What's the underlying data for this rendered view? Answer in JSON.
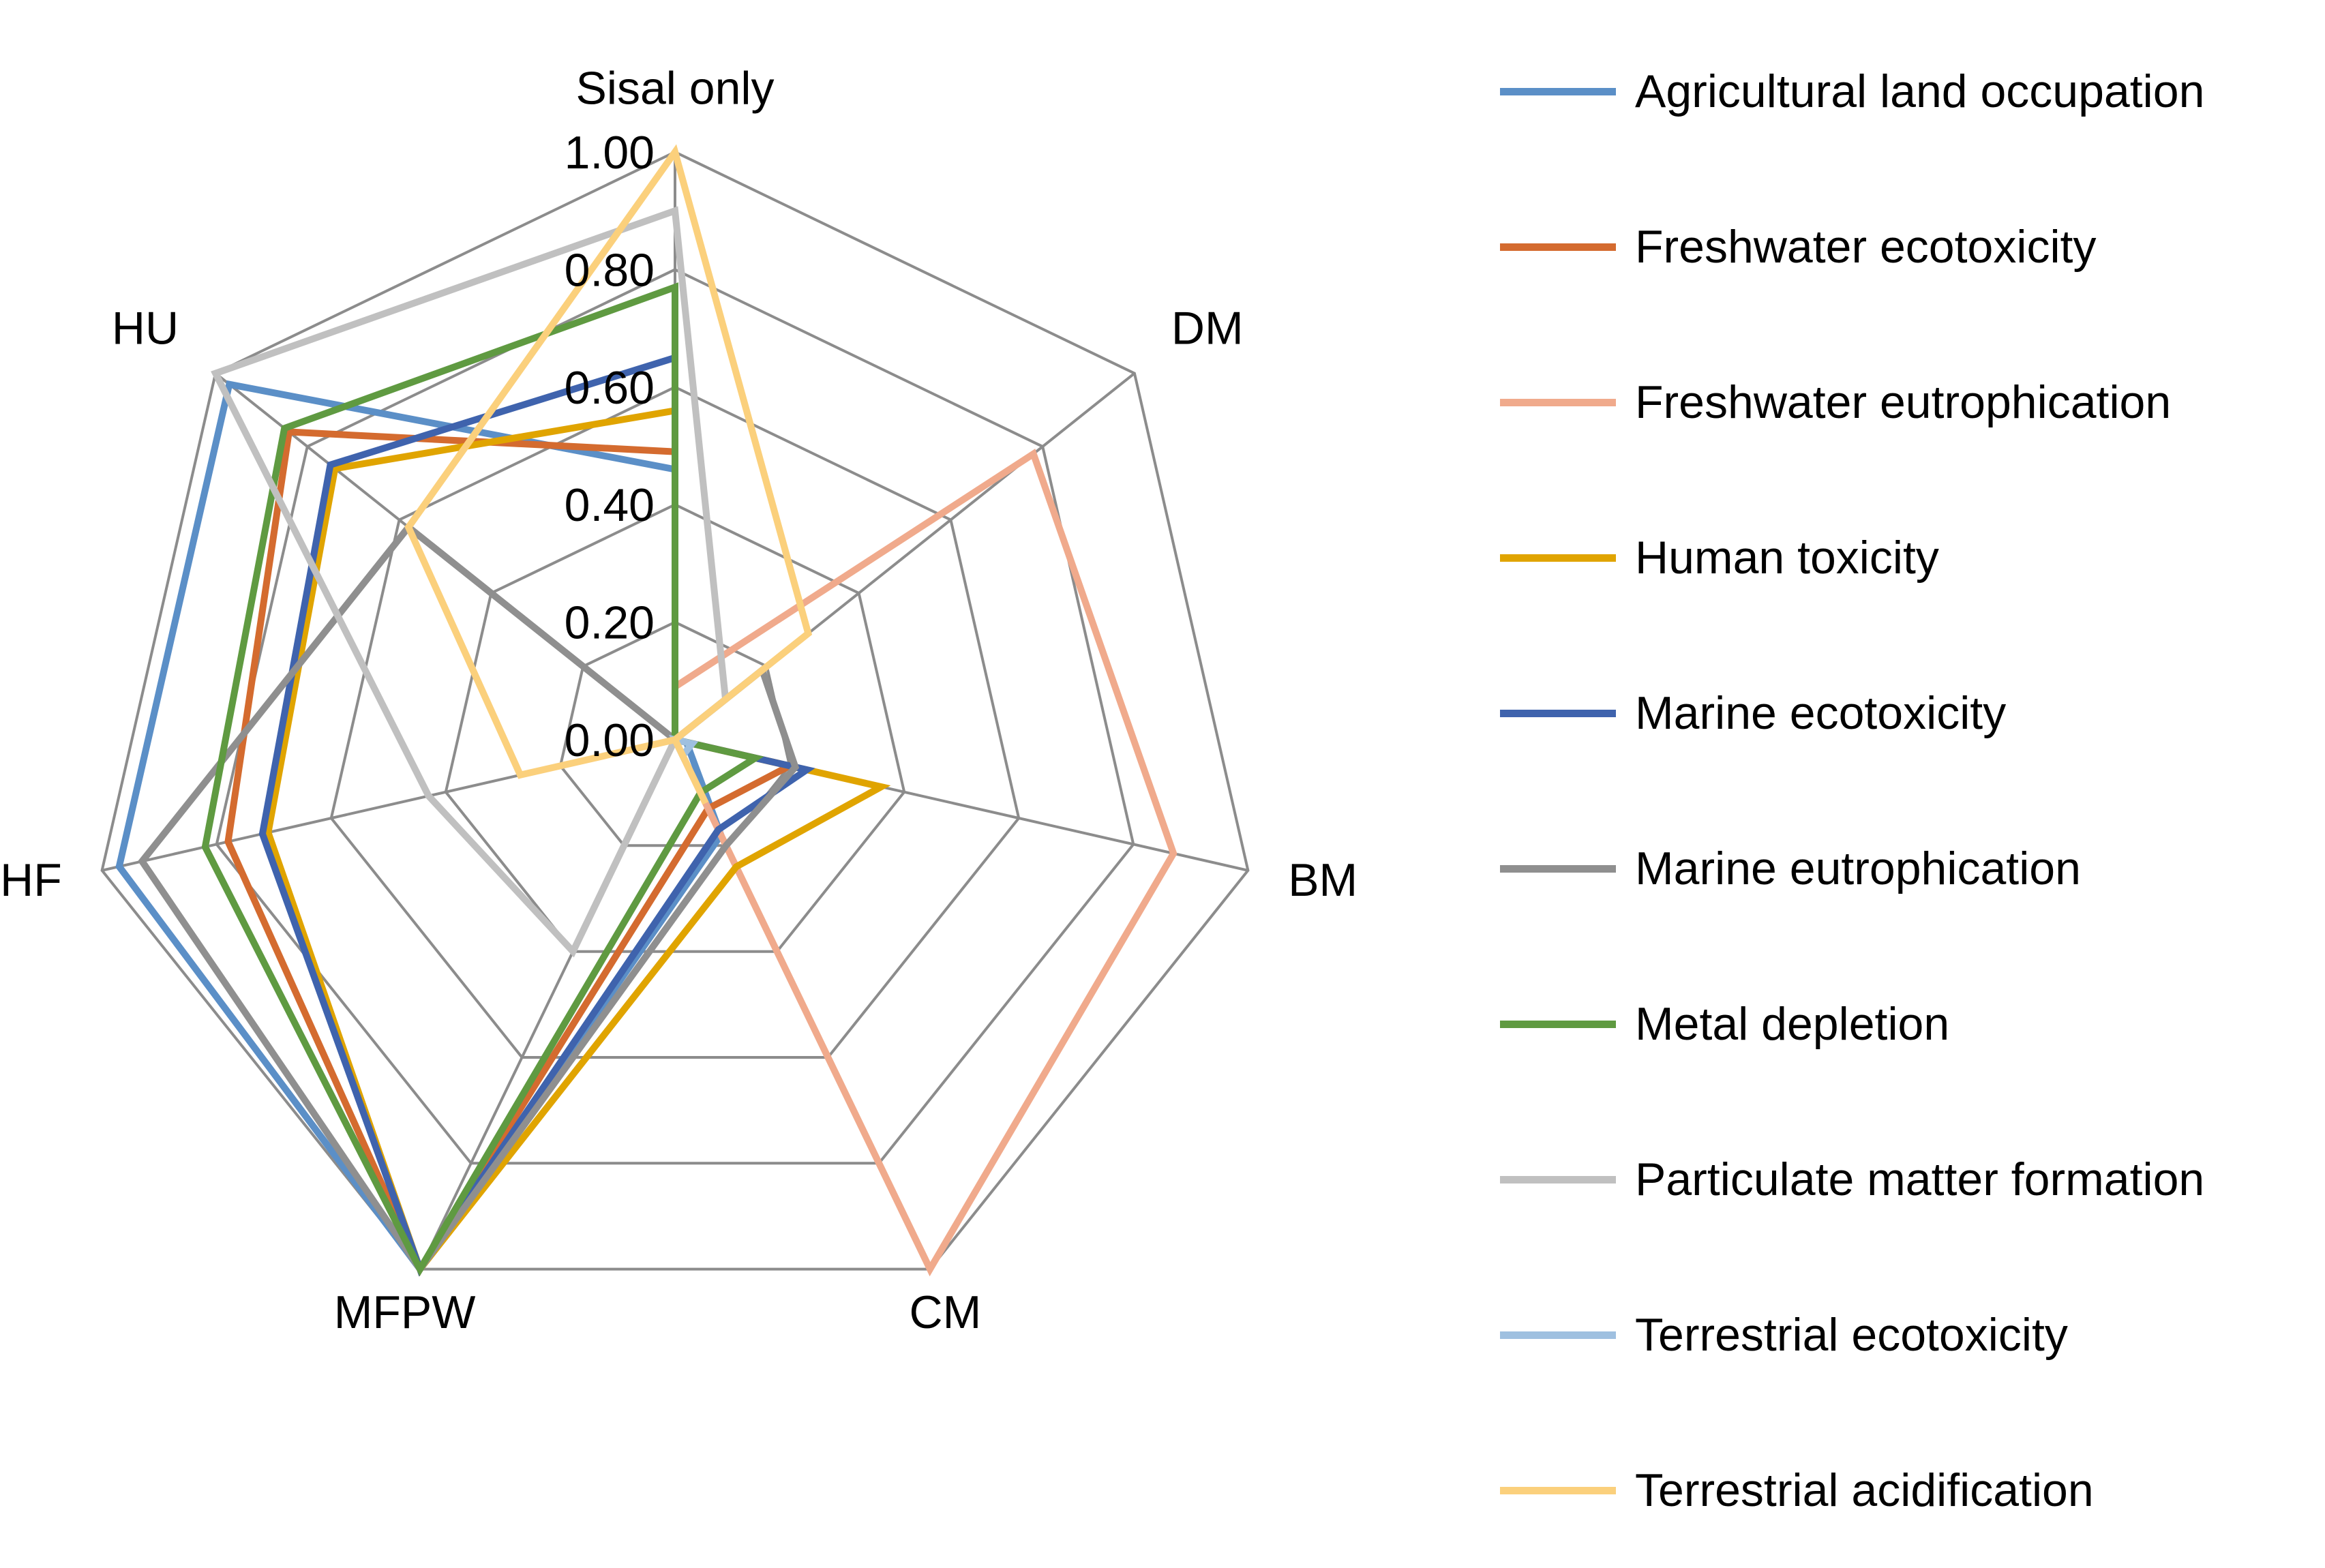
{
  "chart_data": {
    "type": "radar",
    "title": "",
    "categories": [
      "Sisal only",
      "DM",
      "BM",
      "CM",
      "MFPW",
      "HF",
      "HU"
    ],
    "radial_range": [
      0,
      1
    ],
    "ticks": [
      "0.00",
      "0.20",
      "0.40",
      "0.60",
      "0.80",
      "1.00"
    ],
    "tick_values": [
      0,
      0.2,
      0.4,
      0.6,
      0.8,
      1.0
    ],
    "grid_values": [
      0.2,
      0.4,
      0.6,
      0.8,
      1.0
    ],
    "legend_position": "right",
    "series": [
      {
        "name": "Agricultural land occupation",
        "color": "#5b8fc7",
        "values": [
          0.46,
          0.0,
          0.02,
          0.18,
          1.0,
          0.97,
          0.97
        ]
      },
      {
        "name": "Freshwater ecotoxicity",
        "color": "#d46b2f",
        "values": [
          0.49,
          0.0,
          0.2,
          0.13,
          1.0,
          0.78,
          0.84
        ]
      },
      {
        "name": "Freshwater eutrophication",
        "color": "#f0aa8c",
        "values": [
          0.09,
          0.78,
          0.87,
          1.0,
          0.0,
          0.0,
          0.0
        ]
      },
      {
        "name": "Human toxicity",
        "color": "#e0a400",
        "values": [
          0.56,
          0.0,
          0.36,
          0.24,
          1.0,
          0.71,
          0.74
        ]
      },
      {
        "name": "Marine ecotoxicity",
        "color": "#3f63ad",
        "values": [
          0.65,
          0.0,
          0.23,
          0.17,
          1.0,
          0.72,
          0.75
        ]
      },
      {
        "name": "Marine eutrophication",
        "color": "#8f8f8f",
        "values": [
          0.0,
          0.19,
          0.21,
          0.2,
          1.0,
          0.93,
          0.58
        ]
      },
      {
        "name": "Metal depletion",
        "color": "#5f9a41",
        "values": [
          0.77,
          0.0,
          0.14,
          0.1,
          1.0,
          0.82,
          0.85
        ]
      },
      {
        "name": "Particulate matter formation",
        "color": "#c0c0c0",
        "values": [
          0.9,
          0.11,
          0.0,
          0.0,
          0.4,
          0.43,
          1.0
        ]
      },
      {
        "name": "Terrestrial ecotoxicity",
        "color": "#9fc0e0",
        "values": [
          0.0,
          0.0,
          0.03,
          0.03,
          0.0,
          0.0,
          0.0
        ]
      },
      {
        "name": "Terrestrial acidification",
        "color": "#fbd07c",
        "values": [
          1.0,
          0.29,
          0.0,
          0.12,
          0.0,
          0.27,
          0.58
        ]
      }
    ]
  }
}
